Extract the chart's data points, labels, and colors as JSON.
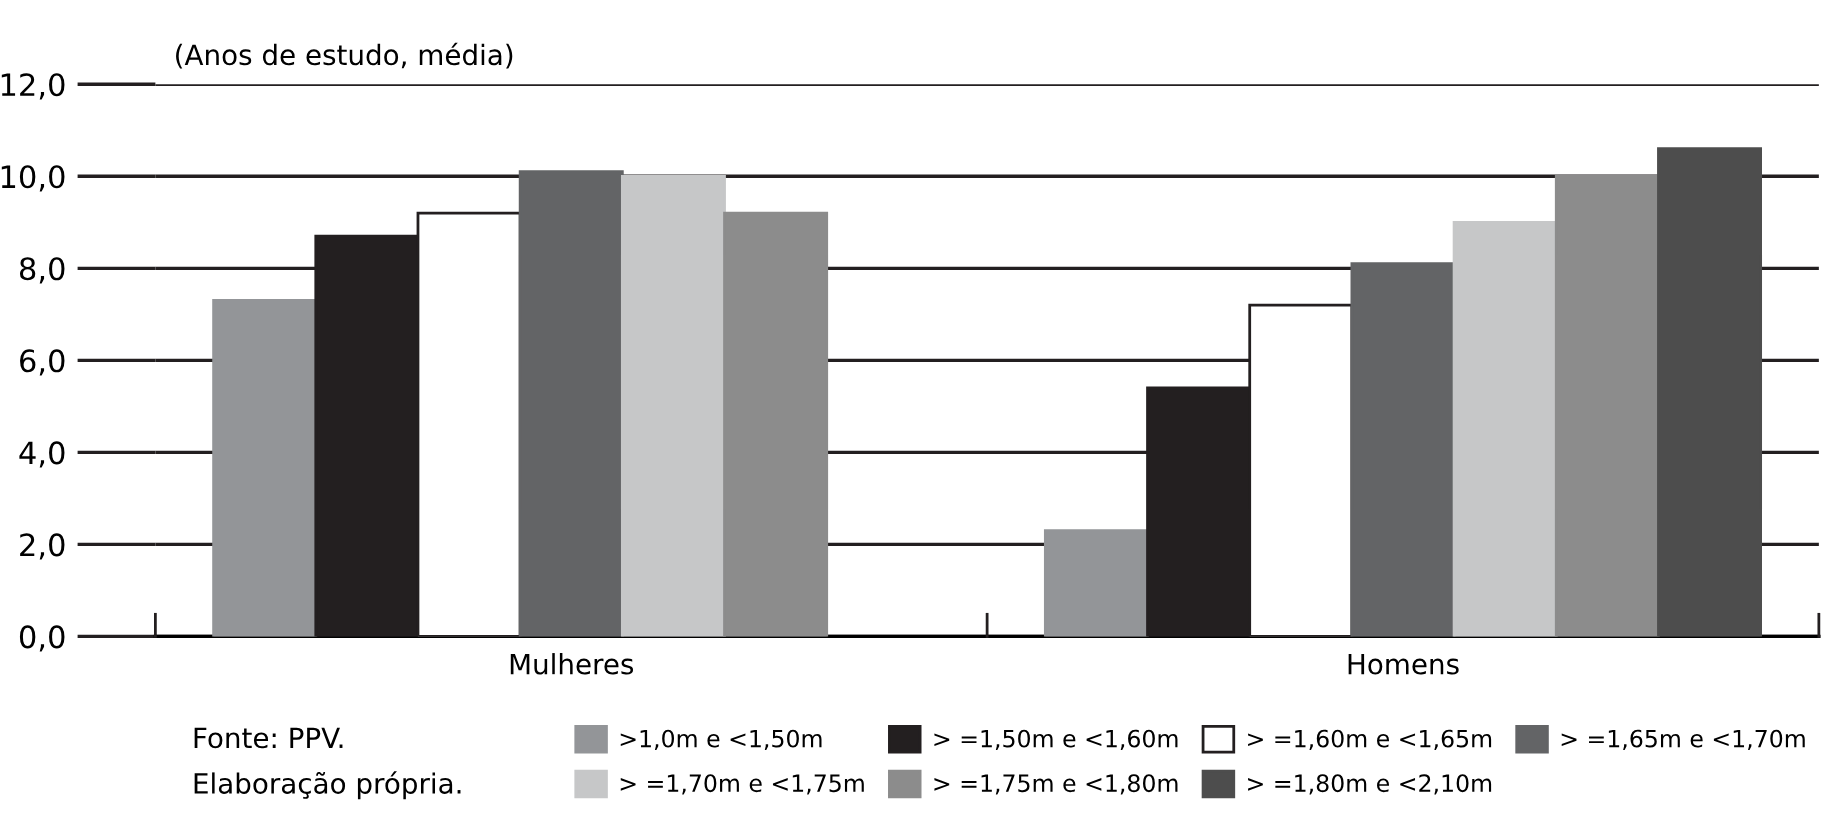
{
  "chart_data": {
    "type": "bar",
    "subtitle": "(Anos de estudo, média)",
    "categories": [
      "Mulheres",
      "Homens"
    ],
    "series": [
      {
        "name": ">1,0m e <1,50m",
        "color": "#939598",
        "values": [
          7.3,
          2.3
        ]
      },
      {
        "name": "> =1,50m e <1,60m",
        "color": "#231f20",
        "values": [
          8.7,
          5.4
        ]
      },
      {
        "name": "> =1,60m e <1,65m",
        "color": "#ffffff",
        "values": [
          9.2,
          7.2
        ]
      },
      {
        "name": "> =1,65m e <1,70m",
        "color": "#636466",
        "values": [
          10.1,
          8.1
        ]
      },
      {
        "name": "> =1,70m e <1,75m",
        "color": "#c6c7c8",
        "values": [
          10.0,
          9.0
        ]
      },
      {
        "name": "> =1,75m e <1,80m",
        "color": "#8c8c8c",
        "values": [
          9.2,
          10.0
        ]
      },
      {
        "name": "> =1,80m e <2,10m",
        "color": "#4d4d4d",
        "values": [
          null,
          10.6
        ]
      }
    ],
    "ylim": [
      0,
      12
    ],
    "yticks": [
      {
        "value": 0,
        "label": "0,0"
      },
      {
        "value": 2,
        "label": "2,0"
      },
      {
        "value": 4,
        "label": "4,0"
      },
      {
        "value": 6,
        "label": "6,0"
      },
      {
        "value": 8,
        "label": "8,0"
      },
      {
        "value": 10,
        "label": "10,0"
      },
      {
        "value": 12,
        "label": "12,0"
      }
    ],
    "grid": "y",
    "legend": "bottom right",
    "annotations": [
      "Fonte: PPV.",
      "Elaboração própria."
    ]
  }
}
